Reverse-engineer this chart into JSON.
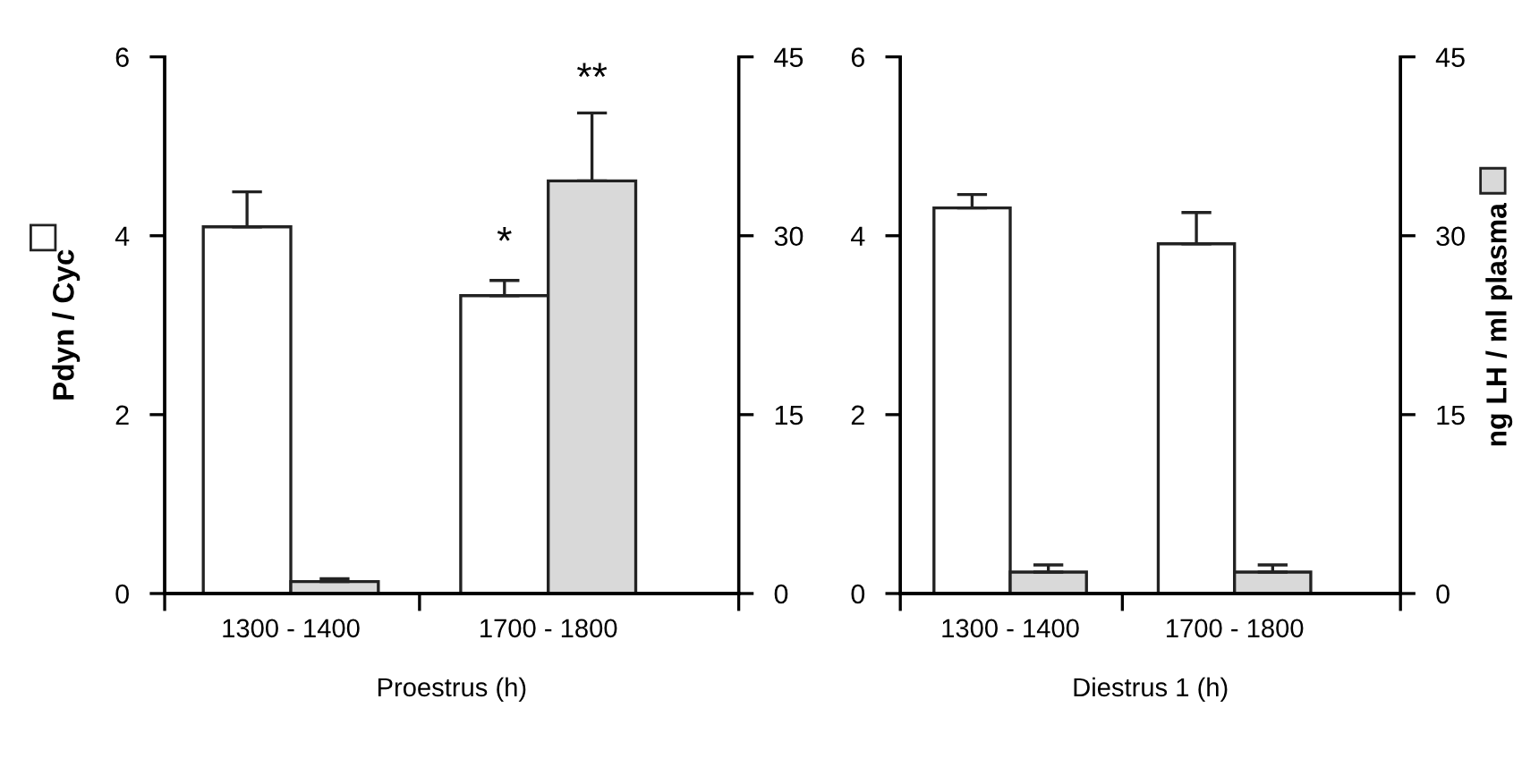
{
  "chart_data": [
    {
      "type": "bar",
      "categories": [
        "1300 - 1400",
        "1700 - 1800"
      ],
      "xlabel": "Proestrus (h)",
      "ylabel": "Pdyn / Cyc",
      "ylim": [
        0,
        6
      ],
      "yticks": [
        0,
        2,
        4,
        6
      ],
      "y2lim": [
        0,
        45
      ],
      "y2ticks": [
        0,
        15,
        30,
        45
      ],
      "grid": false,
      "legend": false,
      "series": [
        {
          "color": "#ffffff",
          "values": [
            4.1,
            3.33
          ],
          "errors": [
            0.39,
            0.17
          ]
        },
        {
          "color": "#d9d9d9",
          "axis": "y2",
          "values": [
            1.0,
            34.6
          ],
          "errors": [
            0.25,
            5.7
          ]
        }
      ],
      "annotations": [
        {
          "text": "*",
          "x": "1700 - 1800",
          "y": 3.7
        },
        "**"
      ]
    },
    {
      "type": "bar",
      "categories": [
        "1300 - 1400",
        "1700 - 1800"
      ],
      "xlabel": "Diestrus 1 (h)",
      "y2label": "ng LH / ml plasma",
      "ylim": [
        0,
        6
      ],
      "yticks": [
        0,
        2,
        4,
        6
      ],
      "y2lim": [
        0,
        45
      ],
      "y2ticks": [
        0,
        15,
        30,
        45
      ],
      "grid": false,
      "legend": false,
      "series": [
        {
          "color": "#ffffff",
          "values": [
            4.31,
            3.91
          ],
          "errors": [
            0.15,
            0.35
          ]
        },
        {
          "color": "#d9d9d9",
          "axis": "y2",
          "values": [
            1.8,
            1.8
          ],
          "errors": [
            0.6,
            0.6
          ]
        }
      ]
    }
  ]
}
